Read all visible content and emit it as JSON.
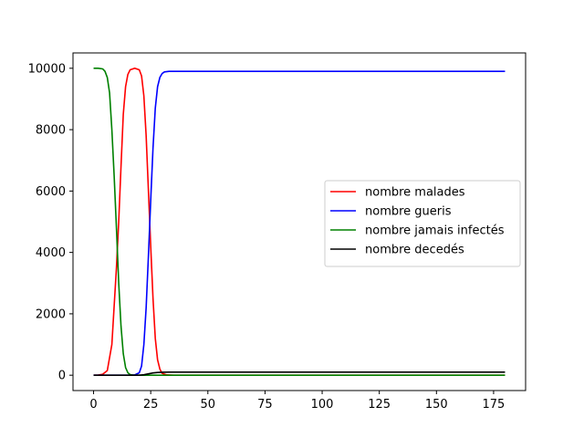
{
  "chart_data": {
    "type": "line",
    "title": "",
    "xlabel": "",
    "ylabel": "",
    "xlim": [
      -9,
      189
    ],
    "ylim": [
      -500,
      10500
    ],
    "x_ticks": [
      0,
      25,
      50,
      75,
      100,
      125,
      150,
      175
    ],
    "y_ticks": [
      0,
      2000,
      4000,
      6000,
      8000,
      10000
    ],
    "grid": false,
    "legend_position": "center-right",
    "series": [
      {
        "name": "nombre malades",
        "color": "#ff0000",
        "points": [
          [
            0,
            0
          ],
          [
            2,
            5
          ],
          [
            4,
            30
          ],
          [
            6,
            150
          ],
          [
            8,
            1000
          ],
          [
            10,
            3500
          ],
          [
            11,
            5000
          ],
          [
            12,
            6800
          ],
          [
            13,
            8500
          ],
          [
            14,
            9400
          ],
          [
            15,
            9800
          ],
          [
            16,
            9950
          ],
          [
            18,
            10000
          ],
          [
            20,
            9950
          ],
          [
            21,
            9750
          ],
          [
            22,
            9100
          ],
          [
            23,
            7800
          ],
          [
            24,
            6000
          ],
          [
            25,
            4200
          ],
          [
            26,
            2500
          ],
          [
            27,
            1200
          ],
          [
            28,
            500
          ],
          [
            29,
            200
          ],
          [
            30,
            60
          ],
          [
            32,
            10
          ],
          [
            35,
            0
          ],
          [
            180,
            0
          ]
        ]
      },
      {
        "name": "nombre gueris",
        "color": "#0000ff",
        "points": [
          [
            0,
            0
          ],
          [
            15,
            0
          ],
          [
            18,
            10
          ],
          [
            20,
            80
          ],
          [
            21,
            300
          ],
          [
            22,
            1000
          ],
          [
            23,
            2200
          ],
          [
            24,
            3900
          ],
          [
            25,
            5700
          ],
          [
            26,
            7400
          ],
          [
            27,
            8700
          ],
          [
            28,
            9400
          ],
          [
            29,
            9700
          ],
          [
            30,
            9830
          ],
          [
            31,
            9880
          ],
          [
            33,
            9900
          ],
          [
            180,
            9900
          ]
        ]
      },
      {
        "name": "nombre jamais infectés",
        "color": "#008000",
        "points": [
          [
            0,
            10000
          ],
          [
            2,
            10000
          ],
          [
            4,
            9980
          ],
          [
            5,
            9900
          ],
          [
            6,
            9700
          ],
          [
            7,
            9200
          ],
          [
            8,
            8000
          ],
          [
            9,
            6500
          ],
          [
            10,
            4800
          ],
          [
            11,
            3000
          ],
          [
            12,
            1600
          ],
          [
            13,
            700
          ],
          [
            14,
            250
          ],
          [
            15,
            80
          ],
          [
            16,
            20
          ],
          [
            17,
            5
          ],
          [
            18,
            0
          ],
          [
            180,
            0
          ]
        ]
      },
      {
        "name": "nombre decedés",
        "color": "#000000",
        "points": [
          [
            0,
            0
          ],
          [
            20,
            0
          ],
          [
            22,
            15
          ],
          [
            24,
            45
          ],
          [
            26,
            75
          ],
          [
            28,
            90
          ],
          [
            30,
            97
          ],
          [
            33,
            100
          ],
          [
            180,
            100
          ]
        ]
      }
    ]
  }
}
